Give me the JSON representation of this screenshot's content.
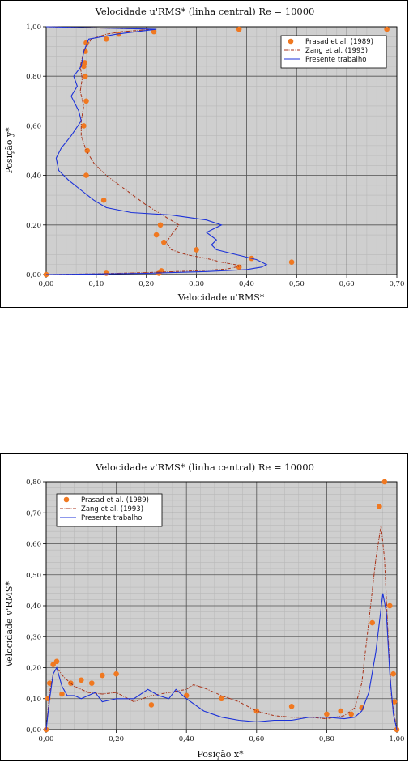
{
  "chart_data": [
    {
      "type": "line",
      "title": "Velocidade u'RMS* (linha central) Re = 10000",
      "xlabel": "Velocidade u'RMS*",
      "ylabel": "Posição y*",
      "xlim": [
        0,
        0.7
      ],
      "ylim": [
        0,
        1.0
      ],
      "xticks": [
        "0,00",
        "0,10",
        "0,20",
        "0,30",
        "0,40",
        "0,50",
        "0,60",
        "0,70"
      ],
      "yticks": [
        "0,00",
        "0,20",
        "0,40",
        "0,60",
        "0,80",
        "1,00"
      ],
      "grid": true,
      "legend_position": "top-right",
      "series": [
        {
          "name": "Prasad et al. (1989)",
          "kind": "scatter",
          "color": "#f07820",
          "points": [
            [
              0.0,
              0.0
            ],
            [
              0.12,
              0.005
            ],
            [
              0.225,
              0.005
            ],
            [
              0.23,
              0.015
            ],
            [
              0.385,
              0.03
            ],
            [
              0.41,
              0.065
            ],
            [
              0.49,
              0.05
            ],
            [
              0.3,
              0.1
            ],
            [
              0.235,
              0.13
            ],
            [
              0.22,
              0.16
            ],
            [
              0.228,
              0.2
            ],
            [
              0.115,
              0.3
            ],
            [
              0.08,
              0.4
            ],
            [
              0.082,
              0.5
            ],
            [
              0.075,
              0.6
            ],
            [
              0.08,
              0.7
            ],
            [
              0.078,
              0.8
            ],
            [
              0.075,
              0.84
            ],
            [
              0.077,
              0.855
            ],
            [
              0.078,
              0.9
            ],
            [
              0.08,
              0.935
            ],
            [
              0.12,
              0.95
            ],
            [
              0.145,
              0.97
            ],
            [
              0.215,
              0.98
            ],
            [
              0.385,
              0.99
            ],
            [
              0.68,
              0.99
            ]
          ]
        },
        {
          "name": "Zang et al. (1993)",
          "kind": "dashed-line",
          "color": "#a83218",
          "points": [
            [
              0.0,
              0.0
            ],
            [
              0.1,
              0.003
            ],
            [
              0.2,
              0.008
            ],
            [
              0.3,
              0.015
            ],
            [
              0.36,
              0.022
            ],
            [
              0.39,
              0.035
            ],
            [
              0.35,
              0.05
            ],
            [
              0.32,
              0.065
            ],
            [
              0.28,
              0.08
            ],
            [
              0.25,
              0.1
            ],
            [
              0.24,
              0.13
            ],
            [
              0.25,
              0.16
            ],
            [
              0.265,
              0.2
            ],
            [
              0.24,
              0.23
            ],
            [
              0.2,
              0.28
            ],
            [
              0.16,
              0.34
            ],
            [
              0.12,
              0.4
            ],
            [
              0.095,
              0.45
            ],
            [
              0.08,
              0.5
            ],
            [
              0.07,
              0.56
            ],
            [
              0.07,
              0.62
            ],
            [
              0.075,
              0.68
            ],
            [
              0.068,
              0.74
            ],
            [
              0.072,
              0.79
            ],
            [
              0.068,
              0.84
            ],
            [
              0.075,
              0.9
            ],
            [
              0.09,
              0.95
            ],
            [
              0.12,
              0.97
            ],
            [
              0.15,
              0.98
            ],
            [
              0.215,
              0.99
            ],
            [
              0.0,
              1.0
            ]
          ]
        },
        {
          "name": "Presente trabalho",
          "kind": "line",
          "color": "#1c32d8",
          "points": [
            [
              0.0,
              0.0
            ],
            [
              0.2,
              0.005
            ],
            [
              0.32,
              0.012
            ],
            [
              0.4,
              0.02
            ],
            [
              0.43,
              0.03
            ],
            [
              0.44,
              0.04
            ],
            [
              0.42,
              0.06
            ],
            [
              0.38,
              0.08
            ],
            [
              0.34,
              0.1
            ],
            [
              0.33,
              0.12
            ],
            [
              0.34,
              0.14
            ],
            [
              0.32,
              0.17
            ],
            [
              0.35,
              0.2
            ],
            [
              0.32,
              0.22
            ],
            [
              0.25,
              0.24
            ],
            [
              0.17,
              0.25
            ],
            [
              0.12,
              0.27
            ],
            [
              0.095,
              0.3
            ],
            [
              0.07,
              0.34
            ],
            [
              0.045,
              0.38
            ],
            [
              0.025,
              0.42
            ],
            [
              0.02,
              0.47
            ],
            [
              0.03,
              0.51
            ],
            [
              0.05,
              0.56
            ],
            [
              0.07,
              0.62
            ],
            [
              0.065,
              0.66
            ],
            [
              0.05,
              0.72
            ],
            [
              0.062,
              0.76
            ],
            [
              0.055,
              0.8
            ],
            [
              0.07,
              0.84
            ],
            [
              0.075,
              0.9
            ],
            [
              0.085,
              0.95
            ],
            [
              0.14,
              0.97
            ],
            [
              0.22,
              0.99
            ],
            [
              0.0,
              1.0
            ]
          ]
        }
      ]
    },
    {
      "type": "line",
      "title": "Velocidade v'RMS* (linha central) Re = 10000",
      "xlabel": "Posição x*",
      "ylabel": "Velocidade v'RMS*",
      "xlim": [
        0,
        1.0
      ],
      "ylim": [
        0,
        0.8
      ],
      "xticks": [
        "0,00",
        "0,20",
        "0,40",
        "0,60",
        "0,80",
        "1,00"
      ],
      "yticks": [
        "0,00",
        "0,10",
        "0,20",
        "0,30",
        "0,40",
        "0,50",
        "0,60",
        "0,70",
        "0,80"
      ],
      "grid": true,
      "legend_position": "top-left",
      "series": [
        {
          "name": "Prasad et al. (1989)",
          "kind": "scatter",
          "color": "#f07820",
          "points": [
            [
              0.0,
              0.0
            ],
            [
              0.005,
              0.1
            ],
            [
              0.01,
              0.15
            ],
            [
              0.02,
              0.21
            ],
            [
              0.03,
              0.22
            ],
            [
              0.045,
              0.115
            ],
            [
              0.07,
              0.15
            ],
            [
              0.1,
              0.16
            ],
            [
              0.13,
              0.15
            ],
            [
              0.16,
              0.175
            ],
            [
              0.2,
              0.18
            ],
            [
              0.3,
              0.08
            ],
            [
              0.4,
              0.11
            ],
            [
              0.5,
              0.1
            ],
            [
              0.6,
              0.06
            ],
            [
              0.7,
              0.075
            ],
            [
              0.8,
              0.05
            ],
            [
              0.84,
              0.06
            ],
            [
              0.87,
              0.05
            ],
            [
              0.9,
              0.07
            ],
            [
              0.93,
              0.345
            ],
            [
              0.95,
              0.72
            ],
            [
              0.965,
              0.8
            ],
            [
              0.98,
              0.4
            ],
            [
              0.99,
              0.18
            ],
            [
              0.993,
              0.09
            ],
            [
              1.0,
              0.0
            ]
          ]
        },
        {
          "name": "Zang et al. (1993)",
          "kind": "dashed-line",
          "color": "#a83218",
          "points": [
            [
              0.0,
              0.0
            ],
            [
              0.01,
              0.12
            ],
            [
              0.02,
              0.18
            ],
            [
              0.03,
              0.2
            ],
            [
              0.05,
              0.17
            ],
            [
              0.08,
              0.14
            ],
            [
              0.12,
              0.12
            ],
            [
              0.16,
              0.115
            ],
            [
              0.2,
              0.12
            ],
            [
              0.25,
              0.09
            ],
            [
              0.3,
              0.11
            ],
            [
              0.35,
              0.12
            ],
            [
              0.4,
              0.13
            ],
            [
              0.42,
              0.145
            ],
            [
              0.45,
              0.135
            ],
            [
              0.5,
              0.11
            ],
            [
              0.55,
              0.09
            ],
            [
              0.6,
              0.06
            ],
            [
              0.65,
              0.045
            ],
            [
              0.7,
              0.04
            ],
            [
              0.75,
              0.04
            ],
            [
              0.8,
              0.035
            ],
            [
              0.85,
              0.045
            ],
            [
              0.88,
              0.07
            ],
            [
              0.9,
              0.15
            ],
            [
              0.92,
              0.35
            ],
            [
              0.94,
              0.55
            ],
            [
              0.955,
              0.66
            ],
            [
              0.965,
              0.55
            ],
            [
              0.975,
              0.3
            ],
            [
              0.985,
              0.1
            ],
            [
              1.0,
              0.0
            ]
          ]
        },
        {
          "name": "Presente trabalho",
          "kind": "line",
          "color": "#1c32d8",
          "points": [
            [
              0.0,
              0.0
            ],
            [
              0.01,
              0.1
            ],
            [
              0.02,
              0.18
            ],
            [
              0.03,
              0.2
            ],
            [
              0.045,
              0.14
            ],
            [
              0.06,
              0.11
            ],
            [
              0.08,
              0.11
            ],
            [
              0.1,
              0.1
            ],
            [
              0.12,
              0.11
            ],
            [
              0.14,
              0.12
            ],
            [
              0.16,
              0.09
            ],
            [
              0.2,
              0.1
            ],
            [
              0.25,
              0.1
            ],
            [
              0.29,
              0.13
            ],
            [
              0.32,
              0.11
            ],
            [
              0.35,
              0.1
            ],
            [
              0.37,
              0.13
            ],
            [
              0.4,
              0.1
            ],
            [
              0.45,
              0.06
            ],
            [
              0.5,
              0.04
            ],
            [
              0.55,
              0.03
            ],
            [
              0.6,
              0.025
            ],
            [
              0.65,
              0.03
            ],
            [
              0.7,
              0.03
            ],
            [
              0.75,
              0.04
            ],
            [
              0.8,
              0.04
            ],
            [
              0.85,
              0.035
            ],
            [
              0.88,
              0.04
            ],
            [
              0.9,
              0.06
            ],
            [
              0.92,
              0.12
            ],
            [
              0.94,
              0.25
            ],
            [
              0.96,
              0.44
            ],
            [
              0.97,
              0.38
            ],
            [
              0.98,
              0.18
            ],
            [
              0.99,
              0.05
            ],
            [
              1.0,
              0.0
            ]
          ]
        }
      ]
    }
  ]
}
